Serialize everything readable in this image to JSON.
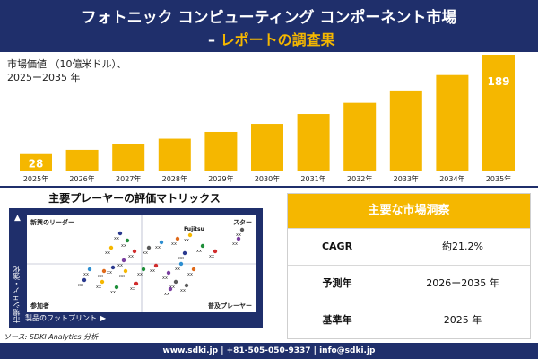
{
  "header": {
    "title": "フォトニック コンピューティング コンポーネント市場",
    "subtitle_dash": "–",
    "subtitle": "レポートの調査果"
  },
  "chart_data": {
    "type": "bar",
    "title": "",
    "ylabel_line1": "市場価値 （10億米ドル）、",
    "ylabel_line2": "2025ー2035 年",
    "categories": [
      "2025年",
      "2026年",
      "2027年",
      "2028年",
      "2029年",
      "2030年",
      "2031年",
      "2032年",
      "2033年",
      "2034年",
      "2035年"
    ],
    "values": [
      28,
      35,
      44,
      53,
      64,
      77,
      93,
      111,
      131,
      156,
      189
    ],
    "data_labels": {
      "0": "28",
      "10": "189"
    },
    "bar_color": "#f5b700",
    "legend": "none",
    "grid": false
  },
  "matrix": {
    "title": "主要プレーヤーの評価マトリックス",
    "quadrants": {
      "top_left": "新興のリーダー",
      "top_right": "スター",
      "bottom_left": "参加者",
      "bottom_right": "普及プレーヤー"
    },
    "y_axis_label": "市場シェア・強化",
    "y_arrow": "▲",
    "x_axis_label": "製品のフットプリント",
    "x_arrow": "▶",
    "highlight_label": "Fujitsu",
    "point_label": "xx",
    "point_colors": [
      "#2b3a8f",
      "#f5b700",
      "#1f8f3a",
      "#d12d2d",
      "#7a3fa0",
      "#5a5a5a",
      "#2e8fd1",
      "#e06a1b"
    ]
  },
  "summary": {
    "heading": "主要な市場洞察",
    "rows": [
      {
        "label": "CAGR",
        "value": "約21.2%"
      },
      {
        "label": "予測年",
        "value": "2026ー2035 年"
      },
      {
        "label": "基準年",
        "value": "2025 年"
      }
    ]
  },
  "source": "ソース: SDKI Analytics 分析",
  "footer": "www.sdki.jp | +81-505-050-9337 | info@sdki.jp"
}
